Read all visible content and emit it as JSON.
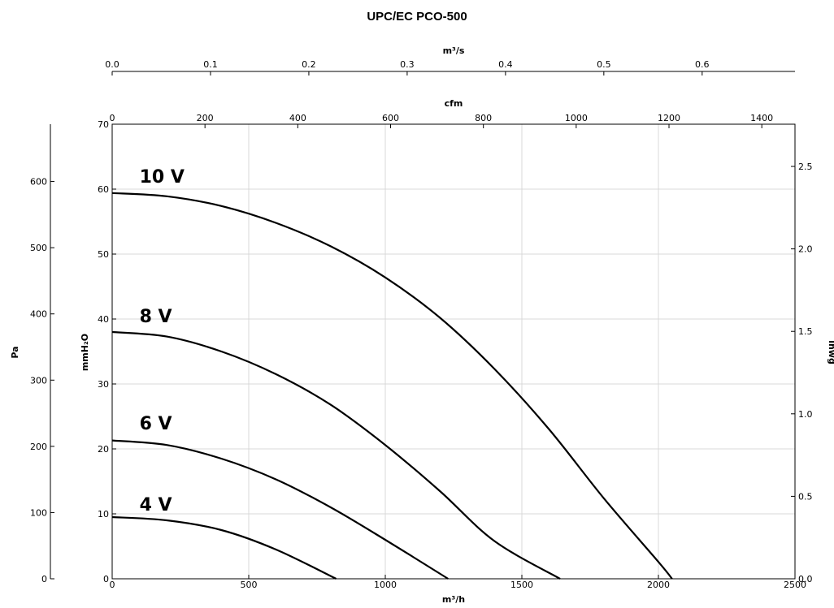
{
  "chart_data": {
    "type": "line",
    "title": "UPC/EC PCO-500",
    "x_primary": {
      "label": "m³/h",
      "lim": [
        0,
        2500
      ],
      "ticks": [
        0,
        500,
        1000,
        1500,
        2000,
        2500
      ],
      "tick_labels": [
        "0",
        "500",
        "1000",
        "1500",
        "2000",
        "2500"
      ]
    },
    "x_top_cfm": {
      "label": "cfm",
      "lim": [
        0,
        1471.5
      ],
      "ticks": [
        0,
        200,
        400,
        600,
        800,
        1000,
        1200,
        1400
      ],
      "tick_labels": [
        "0",
        "200",
        "400",
        "600",
        "800",
        "1000",
        "1200",
        "1400"
      ]
    },
    "x_top_m3s": {
      "label": "m³/s",
      "lim": [
        0,
        0.6944
      ],
      "ticks": [
        0.0,
        0.1,
        0.2,
        0.3,
        0.4,
        0.5,
        0.6
      ],
      "tick_labels": [
        "0.0",
        "0.1",
        "0.2",
        "0.3",
        "0.4",
        "0.5",
        "0.6"
      ]
    },
    "y_primary": {
      "label": "mmH₂O",
      "lim": [
        0,
        70
      ],
      "ticks": [
        0,
        10,
        20,
        30,
        40,
        50,
        60,
        70
      ],
      "tick_labels": [
        "0",
        "10",
        "20",
        "30",
        "40",
        "50",
        "60",
        "70"
      ]
    },
    "y_left_pa": {
      "label": "Pa",
      "lim": [
        0,
        686.5
      ],
      "ticks": [
        0,
        100,
        200,
        300,
        400,
        500,
        600
      ],
      "tick_labels": [
        "0",
        "100",
        "200",
        "300",
        "400",
        "500",
        "600"
      ]
    },
    "y_right_inwg": {
      "label": "inwg",
      "lim": [
        0,
        2.756
      ],
      "ticks": [
        0.0,
        0.5,
        1.0,
        1.5,
        2.0,
        2.5
      ],
      "tick_labels": [
        "0.0",
        "0.5",
        "1.0",
        "1.5",
        "2.0",
        "2.5"
      ]
    },
    "grid": true,
    "series": [
      {
        "name": "10 V",
        "label_at": [
          100,
          61
        ],
        "x": [
          0,
          200,
          400,
          600,
          800,
          1000,
          1200,
          1400,
          1600,
          1800,
          2000,
          2050
        ],
        "y": [
          59.4,
          58.9,
          57.4,
          54.8,
          51.2,
          46.4,
          40.2,
          32.3,
          23.0,
          12.4,
          2.6,
          0
        ]
      },
      {
        "name": "8 V",
        "label_at": [
          100,
          39.5
        ],
        "x": [
          0,
          200,
          400,
          600,
          800,
          1000,
          1200,
          1400,
          1640
        ],
        "y": [
          38.0,
          37.3,
          35.0,
          31.5,
          26.8,
          20.6,
          13.5,
          5.8,
          0
        ]
      },
      {
        "name": "6 V",
        "label_at": [
          100,
          23
        ],
        "x": [
          0,
          200,
          400,
          600,
          800,
          1000,
          1230
        ],
        "y": [
          21.3,
          20.6,
          18.5,
          15.3,
          11.0,
          6.0,
          0
        ]
      },
      {
        "name": "4 V",
        "label_at": [
          100,
          10.5
        ],
        "x": [
          0,
          200,
          400,
          600,
          820
        ],
        "y": [
          9.5,
          9.0,
          7.5,
          4.5,
          0
        ]
      }
    ]
  }
}
